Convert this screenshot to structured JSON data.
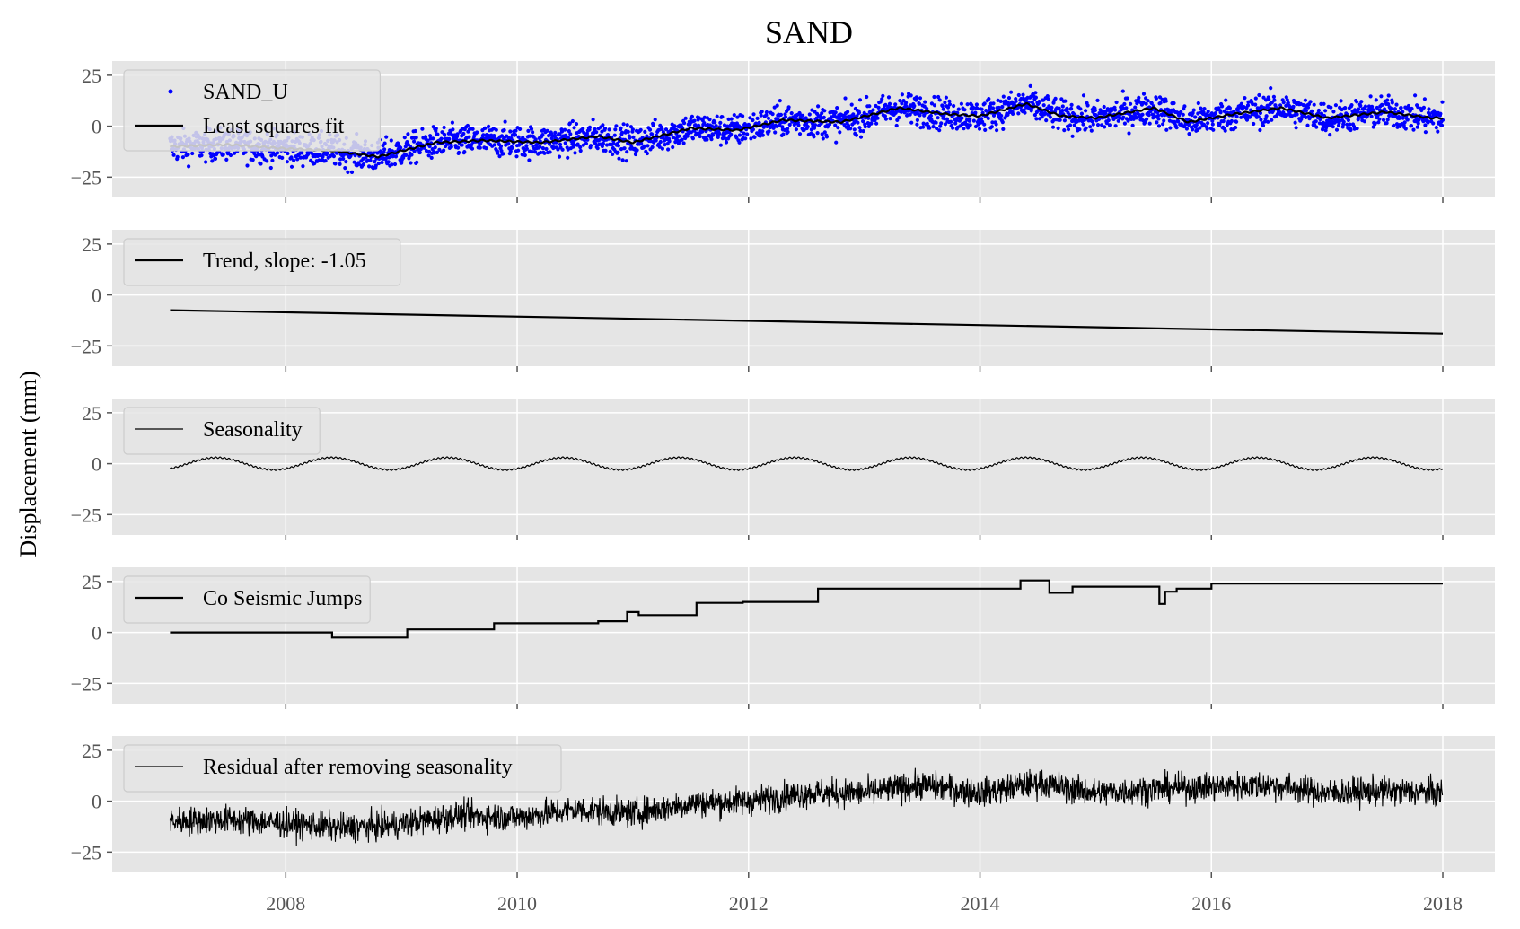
{
  "title": "SAND",
  "ylabel": "Displacement (mm)",
  "colors": {
    "panel_bg": "#e5e5e5",
    "grid": "#ffffff",
    "points": "#0000ff",
    "line": "#000000",
    "legend_bg": "#e5e5e5",
    "legend_border": "#cccccc"
  },
  "chart_data": [
    {
      "type": "scatter",
      "panel": 1,
      "legend": [
        "SAND_U",
        "Least squares fit"
      ],
      "series": [
        {
          "name": "SAND_U",
          "style": "points",
          "color": "#0000ff",
          "description_points": "daily observations, scatter around fit with ~±10 mm noise"
        },
        {
          "name": "Least squares fit",
          "style": "line",
          "color": "#000000",
          "x": [
            2007.0,
            2007.5,
            2008.0,
            2008.4,
            2008.8,
            2009.3,
            2009.7,
            2010.2,
            2010.7,
            2011.0,
            2011.5,
            2011.9,
            2012.3,
            2012.8,
            2013.3,
            2013.7,
            2014.0,
            2014.4,
            2014.7,
            2015.0,
            2015.5,
            2015.8,
            2016.2,
            2016.6,
            2017.0,
            2017.5,
            2017.9,
            2018.0
          ],
          "y": [
            -10,
            -9,
            -11,
            -12,
            -15,
            -8,
            -7,
            -8,
            -5,
            -8,
            -1,
            -2,
            3,
            2,
            9,
            6,
            5,
            11,
            5,
            4,
            9,
            2,
            6,
            9,
            4,
            7,
            4,
            4
          ]
        }
      ],
      "ylim": [
        -35,
        32
      ],
      "yticks": [
        -25,
        0,
        25
      ],
      "ytick_labels": [
        "−25",
        "0",
        "25"
      ]
    },
    {
      "type": "line",
      "panel": 2,
      "legend": [
        "Trend, slope: -1.05"
      ],
      "series": [
        {
          "name": "Trend, slope: -1.05",
          "x": [
            2007.0,
            2018.0
          ],
          "y": [
            -7.5,
            -19.0
          ]
        }
      ],
      "ylim": [
        -35,
        32
      ],
      "yticks": [
        -25,
        0,
        25
      ],
      "ytick_labels": [
        "−25",
        "0",
        "25"
      ]
    },
    {
      "type": "line",
      "panel": 3,
      "legend": [
        "Seasonality"
      ],
      "series": [
        {
          "name": "Seasonality",
          "amplitude": 3,
          "period_years": 1.0,
          "phase_peak": 2007.4
        }
      ],
      "ylim": [
        -35,
        32
      ],
      "yticks": [
        -25,
        0,
        25
      ],
      "ytick_labels": [
        "−25",
        "0",
        "25"
      ]
    },
    {
      "type": "line",
      "panel": 4,
      "legend": [
        "Co Seismic Jumps"
      ],
      "series": [
        {
          "name": "Co Seismic Jumps",
          "x": [
            2007.0,
            2008.4,
            2009.05,
            2009.8,
            2010.7,
            2010.95,
            2011.05,
            2011.55,
            2011.95,
            2012.6,
            2014.35,
            2014.6,
            2014.8,
            2015.55,
            2015.6,
            2015.7,
            2016.0,
            2018.0
          ],
          "y": [
            0,
            -2.5,
            1.5,
            4.5,
            5.5,
            10,
            8.5,
            14.5,
            15,
            21.5,
            25.5,
            19.5,
            22.5,
            14,
            20,
            21.5,
            24,
            24
          ]
        }
      ],
      "ylim": [
        -35,
        32
      ],
      "yticks": [
        -25,
        0,
        25
      ],
      "ytick_labels": [
        "−25",
        "0",
        "25"
      ]
    },
    {
      "type": "line",
      "panel": 5,
      "legend": [
        "Residual after removing seasonality"
      ],
      "series": [
        {
          "name": "Residual after removing seasonality",
          "x": [
            2007.0,
            2007.5,
            2008.0,
            2008.5,
            2008.9,
            2009.5,
            2010.0,
            2010.5,
            2011.0,
            2011.5,
            2012.0,
            2012.5,
            2013.0,
            2013.5,
            2014.0,
            2014.5,
            2015.0,
            2015.5,
            2016.0,
            2016.5,
            2017.0,
            2017.5,
            2018.0
          ],
          "y": [
            -10,
            -9,
            -11,
            -13,
            -12,
            -7,
            -8,
            -4,
            -6,
            -1,
            0,
            4,
            4,
            8,
            4,
            9,
            4,
            6,
            7,
            8,
            4,
            5,
            4
          ]
        }
      ],
      "ylim": [
        -35,
        32
      ],
      "yticks": [
        -25,
        0,
        25
      ],
      "ytick_labels": [
        "−25",
        "0",
        "25"
      ]
    }
  ],
  "x_axis": {
    "xlim": [
      2006.5,
      2018.45
    ],
    "ticks": [
      2008,
      2010,
      2012,
      2014,
      2016,
      2018
    ],
    "tick_labels": [
      "2008",
      "2010",
      "2012",
      "2014",
      "2016",
      "2018"
    ]
  }
}
